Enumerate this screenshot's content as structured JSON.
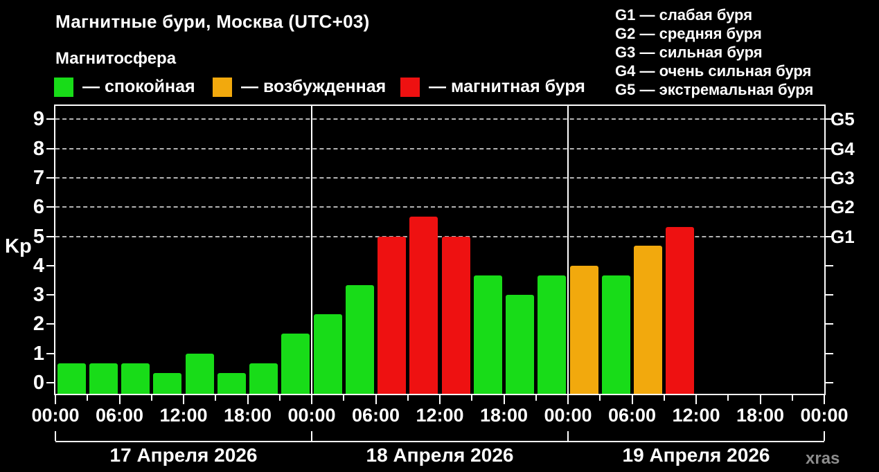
{
  "title": "Магнитные бури, Москва (UTC+03)",
  "subtitle": "Магнитосфера",
  "legend": {
    "items": [
      {
        "key": "calm",
        "color": "#18dc18",
        "label": "— спокойная"
      },
      {
        "key": "excited",
        "color": "#f2a90d",
        "label": "— возбужденная"
      },
      {
        "key": "storm",
        "color": "#ee1111",
        "label": "— магнитная буря"
      }
    ]
  },
  "storm_scale": [
    {
      "code": "G1",
      "label": "— слабая буря"
    },
    {
      "code": "G2",
      "label": "— средняя буря"
    },
    {
      "code": "G3",
      "label": "— сильная буря"
    },
    {
      "code": "G4",
      "label": "— очень сильная буря"
    },
    {
      "code": "G5",
      "label": "— экстремальная буря"
    }
  ],
  "watermark": "xras",
  "chart_data": {
    "type": "bar",
    "title": "Магнитные бури, Москва (UTC+03)",
    "ylabel": "Kp",
    "ylim": [
      0,
      9
    ],
    "yticks": [
      0,
      1,
      2,
      3,
      4,
      5,
      6,
      7,
      8,
      9
    ],
    "grid_on": true,
    "grid_levels": [
      {
        "kp": 5,
        "g": "G1"
      },
      {
        "kp": 6,
        "g": "G2"
      },
      {
        "kp": 7,
        "g": "G3"
      },
      {
        "kp": 8,
        "g": "G4"
      },
      {
        "kp": 9,
        "g": "G5"
      }
    ],
    "x_tick_labels": [
      "00:00",
      "06:00",
      "12:00",
      "18:00"
    ],
    "x_end_label": "00:00",
    "days": [
      {
        "date": "17 Апреля 2026",
        "bars": [
          {
            "time": "00:00",
            "kp": 0.67,
            "status": "calm"
          },
          {
            "time": "03:00",
            "kp": 0.67,
            "status": "calm"
          },
          {
            "time": "06:00",
            "kp": 0.67,
            "status": "calm"
          },
          {
            "time": "09:00",
            "kp": 0.33,
            "status": "calm"
          },
          {
            "time": "12:00",
            "kp": 1.0,
            "status": "calm"
          },
          {
            "time": "15:00",
            "kp": 0.33,
            "status": "calm"
          },
          {
            "time": "18:00",
            "kp": 0.67,
            "status": "calm"
          },
          {
            "time": "21:00",
            "kp": 1.67,
            "status": "calm"
          }
        ]
      },
      {
        "date": "18 Апреля 2026",
        "bars": [
          {
            "time": "00:00",
            "kp": 2.33,
            "status": "calm"
          },
          {
            "time": "03:00",
            "kp": 3.33,
            "status": "calm"
          },
          {
            "time": "06:00",
            "kp": 5.0,
            "status": "storm"
          },
          {
            "time": "09:00",
            "kp": 5.67,
            "status": "storm"
          },
          {
            "time": "12:00",
            "kp": 5.0,
            "status": "storm"
          },
          {
            "time": "15:00",
            "kp": 3.67,
            "status": "calm"
          },
          {
            "time": "18:00",
            "kp": 3.0,
            "status": "calm"
          },
          {
            "time": "21:00",
            "kp": 3.67,
            "status": "calm"
          }
        ]
      },
      {
        "date": "19 Апреля 2026",
        "bars": [
          {
            "time": "00:00",
            "kp": 4.0,
            "status": "excited"
          },
          {
            "time": "03:00",
            "kp": 3.67,
            "status": "calm"
          },
          {
            "time": "06:00",
            "kp": 4.67,
            "status": "excited"
          },
          {
            "time": "09:00",
            "kp": 5.33,
            "status": "storm"
          }
        ]
      }
    ]
  }
}
